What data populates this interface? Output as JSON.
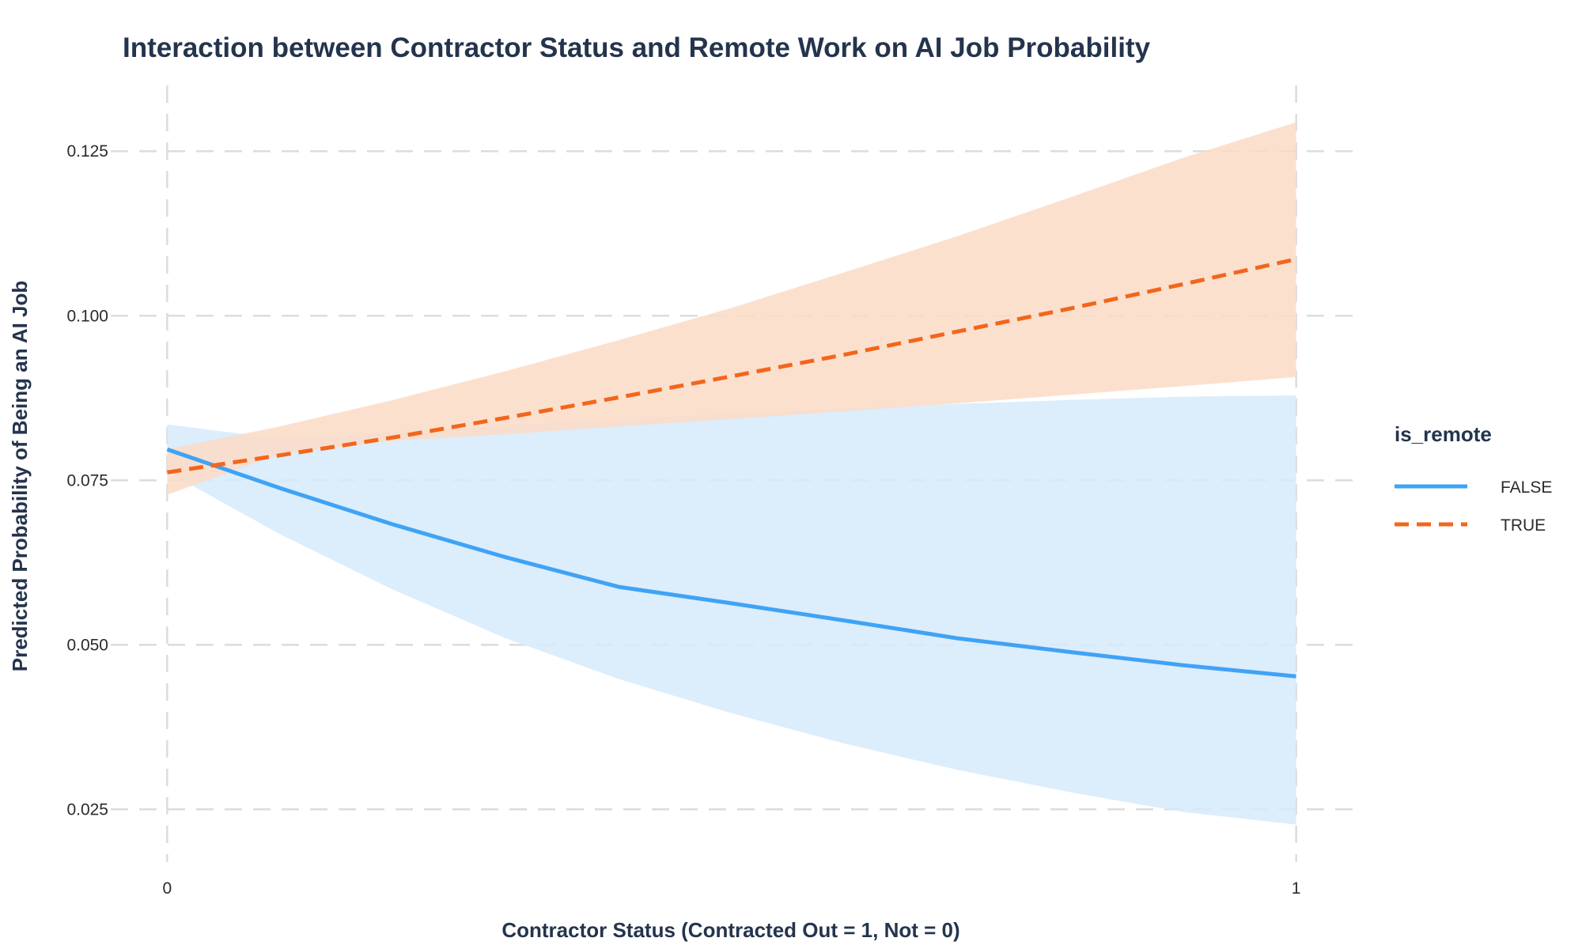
{
  "chart_data": {
    "type": "line",
    "title": "Interaction between Contractor Status and Remote Work on AI Job Probability",
    "xlabel": "Contractor Status (Contracted Out = 1, Not = 0)",
    "ylabel": "Predicted Probability of Being an AI Job",
    "x_ticks": [
      "0",
      "1"
    ],
    "y_ticks": [
      "0.025",
      "0.050",
      "0.075",
      "0.100",
      "0.125"
    ],
    "xlim": [
      -0.05,
      1.05
    ],
    "ylim": [
      0.017,
      0.135
    ],
    "grid": true,
    "legend": {
      "title": "is_remote",
      "position": "right"
    },
    "series": [
      {
        "name": "FALSE",
        "color": "#3fa3f5",
        "band_color": "#d6eafc",
        "line_style": "solid",
        "x": [
          0,
          0.1,
          0.2,
          0.3,
          0.4,
          0.5,
          0.6,
          0.7,
          0.8,
          0.9,
          1.0
        ],
        "y": [
          0.0797,
          0.0738,
          0.0683,
          0.0633,
          0.0588,
          0.0563,
          0.0537,
          0.051,
          0.0489,
          0.0469,
          0.0452
        ],
        "lower": [
          0.0763,
          0.0668,
          0.0584,
          0.051,
          0.0448,
          0.0396,
          0.035,
          0.031,
          0.0276,
          0.0246,
          0.0227
        ],
        "upper": [
          0.0835,
          0.0813,
          0.0824,
          0.0833,
          0.0843,
          0.0851,
          0.0859,
          0.0866,
          0.0872,
          0.0877,
          0.0879
        ]
      },
      {
        "name": "TRUE",
        "color": "#f2661c",
        "band_color": "#fcdbc6",
        "line_style": "dashed",
        "x": [
          0,
          0.1,
          0.2,
          0.3,
          0.4,
          0.5,
          0.6,
          0.7,
          0.8,
          0.9,
          1.0
        ],
        "y": [
          0.0762,
          0.0788,
          0.0815,
          0.0845,
          0.0876,
          0.0908,
          0.0941,
          0.0976,
          0.1011,
          0.1048,
          0.1086
        ],
        "lower": [
          0.0728,
          0.079,
          0.081,
          0.082,
          0.0832,
          0.0843,
          0.0855,
          0.0867,
          0.088,
          0.0893,
          0.0907
        ],
        "upper": [
          0.0797,
          0.0832,
          0.0872,
          0.0916,
          0.0963,
          0.1012,
          0.1066,
          0.1121,
          0.118,
          0.124,
          0.1294
        ]
      }
    ]
  }
}
